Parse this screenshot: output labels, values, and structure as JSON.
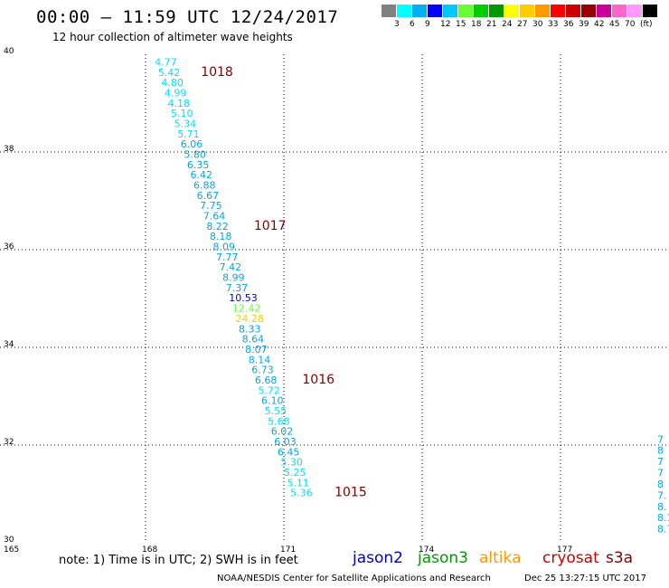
{
  "header": {
    "title": "00:00 – 11:59 UTC 12/24/2017",
    "subtitle": "12 hour collection of altimeter wave heights"
  },
  "legend": {
    "colors": [
      "#808080",
      "#00ffff",
      "#00b0f0",
      "#0000ff",
      "#00c8ff",
      "#66ff33",
      "#00cc00",
      "#009900",
      "#ffff00",
      "#ffcc00",
      "#ff9900",
      "#ff0000",
      "#cc0000",
      "#990000",
      "#cc0099",
      "#ff66cc",
      "#ff99ff",
      "#000000"
    ],
    "ticks": [
      "3",
      "6",
      "9",
      "12",
      "15",
      "18",
      "21",
      "24",
      "27",
      "30",
      "33",
      "36",
      "39",
      "42",
      "45",
      "70"
    ],
    "unit": "(ft)"
  },
  "axes": {
    "lon_ticks": [
      "165",
      "168",
      "171",
      "174",
      "177"
    ],
    "lat_ticks": [
      "40",
      "38",
      "36",
      "34",
      "32",
      "30"
    ]
  },
  "track_points": [
    {
      "lat": 39.77,
      "lon": 168.2,
      "v": "4.77",
      "c": "#00e0ff"
    },
    {
      "lat": 39.56,
      "lon": 168.27,
      "v": "5.42",
      "c": "#00e0ff"
    },
    {
      "lat": 39.35,
      "lon": 168.34,
      "v": "4.80",
      "c": "#00e0ff"
    },
    {
      "lat": 39.14,
      "lon": 168.41,
      "v": "4.99",
      "c": "#00e0ff"
    },
    {
      "lat": 38.93,
      "lon": 168.48,
      "v": "4.18",
      "c": "#00e0ff"
    },
    {
      "lat": 38.72,
      "lon": 168.55,
      "v": "5.10",
      "c": "#00e0ff"
    },
    {
      "lat": 38.51,
      "lon": 168.62,
      "v": "5.34",
      "c": "#00e0ff"
    },
    {
      "lat": 38.3,
      "lon": 168.69,
      "v": "5.71",
      "c": "#00e0ff"
    },
    {
      "lat": 38.09,
      "lon": 168.76,
      "v": "6.06",
      "c": "#00a8e8"
    },
    {
      "lat": 37.88,
      "lon": 168.83,
      "v": "5.80",
      "c": "#00a8e8"
    },
    {
      "lat": 37.67,
      "lon": 168.9,
      "v": "6.35",
      "c": "#00a8e8"
    },
    {
      "lat": 37.46,
      "lon": 168.97,
      "v": "6.42",
      "c": "#00a8e8"
    },
    {
      "lat": 37.25,
      "lon": 169.04,
      "v": "6.88",
      "c": "#00a8e8"
    },
    {
      "lat": 37.04,
      "lon": 169.11,
      "v": "6.67",
      "c": "#00a8e8"
    },
    {
      "lat": 36.83,
      "lon": 169.18,
      "v": "7.75",
      "c": "#00a8e8"
    },
    {
      "lat": 36.62,
      "lon": 169.25,
      "v": "7.64",
      "c": "#00a8e8"
    },
    {
      "lat": 36.41,
      "lon": 169.32,
      "v": "8.22",
      "c": "#00a8e8"
    },
    {
      "lat": 36.2,
      "lon": 169.39,
      "v": "8.18",
      "c": "#00a8e8"
    },
    {
      "lat": 35.99,
      "lon": 169.46,
      "v": "8.09",
      "c": "#00a8e8"
    },
    {
      "lat": 35.78,
      "lon": 169.53,
      "v": "7.77",
      "c": "#00a8e8"
    },
    {
      "lat": 35.57,
      "lon": 169.6,
      "v": "7.42",
      "c": "#00a8e8"
    },
    {
      "lat": 35.36,
      "lon": 169.67,
      "v": "8.99",
      "c": "#00a8e8"
    },
    {
      "lat": 35.15,
      "lon": 169.74,
      "v": "7.37",
      "c": "#00a8e8"
    },
    {
      "lat": 34.94,
      "lon": 169.81,
      "v": "10.53",
      "c": "#0000c8"
    },
    {
      "lat": 34.73,
      "lon": 169.88,
      "v": "12.42",
      "c": "#66ff33"
    },
    {
      "lat": 34.52,
      "lon": 169.95,
      "v": "24.28",
      "c": "#ffcc00"
    },
    {
      "lat": 34.31,
      "lon": 170.02,
      "v": "8.33",
      "c": "#00a8e8"
    },
    {
      "lat": 34.1,
      "lon": 170.09,
      "v": "8.64",
      "c": "#00a8e8"
    },
    {
      "lat": 33.89,
      "lon": 170.16,
      "v": "8.07",
      "c": "#00a8e8"
    },
    {
      "lat": 33.68,
      "lon": 170.23,
      "v": "8.14",
      "c": "#00a8e8"
    },
    {
      "lat": 33.47,
      "lon": 170.3,
      "v": "6.73",
      "c": "#00a8e8"
    },
    {
      "lat": 33.26,
      "lon": 170.37,
      "v": "6.68",
      "c": "#00a8e8"
    },
    {
      "lat": 33.05,
      "lon": 170.44,
      "v": "5.72",
      "c": "#00e0ff"
    },
    {
      "lat": 32.84,
      "lon": 170.51,
      "v": "6.10",
      "c": "#00a8e8"
    },
    {
      "lat": 32.63,
      "lon": 170.58,
      "v": "5.55",
      "c": "#00e0ff"
    },
    {
      "lat": 32.42,
      "lon": 170.65,
      "v": "5.68",
      "c": "#00e0ff"
    },
    {
      "lat": 32.21,
      "lon": 170.72,
      "v": "6.02",
      "c": "#00a8e8"
    },
    {
      "lat": 32.0,
      "lon": 170.79,
      "v": "6.03",
      "c": "#00a8e8"
    },
    {
      "lat": 31.79,
      "lon": 170.86,
      "v": "6.45",
      "c": "#00a8e8"
    },
    {
      "lat": 31.58,
      "lon": 170.93,
      "v": "5.30",
      "c": "#00e0ff"
    },
    {
      "lat": 31.37,
      "lon": 171.0,
      "v": "5.25",
      "c": "#00e0ff"
    },
    {
      "lat": 31.16,
      "lon": 171.07,
      "v": "5.11",
      "c": "#00e0ff"
    },
    {
      "lat": 30.95,
      "lon": 171.14,
      "v": "5.36",
      "c": "#00e0ff"
    }
  ],
  "right_edge_points": [
    {
      "lat": 32.05,
      "v": "7"
    },
    {
      "lat": 31.82,
      "v": "8"
    },
    {
      "lat": 31.59,
      "v": "7"
    },
    {
      "lat": 31.36,
      "v": "7"
    },
    {
      "lat": 31.13,
      "v": "8"
    },
    {
      "lat": 30.9,
      "v": "7."
    },
    {
      "lat": 30.67,
      "v": "8."
    },
    {
      "lat": 30.44,
      "v": "8.1"
    },
    {
      "lat": 30.21,
      "v": "8.7"
    }
  ],
  "pressure_labels": [
    {
      "lat": 39.56,
      "lon": 169.2,
      "v": "1018"
    },
    {
      "lat": 36.41,
      "lon": 170.35,
      "v": "1017"
    },
    {
      "lat": 33.26,
      "lon": 171.4,
      "v": "1016"
    },
    {
      "lat": 30.95,
      "lon": 172.1,
      "v": "1015"
    }
  ],
  "footer": {
    "note": "note:  1) Time is in UTC;  2) SWH is in feet",
    "satellites": [
      {
        "name": "jason2",
        "color": "#0000cc"
      },
      {
        "name": "jason3",
        "color": "#009900"
      },
      {
        "name": "altika",
        "color": "#ff9900"
      },
      {
        "name": "cryosat",
        "color": "#cc0000"
      },
      {
        "name": "s3a",
        "color": "#800000"
      }
    ],
    "credit": "NOAA/NESDIS Center for Satellite Applications and Research",
    "timestamp": "Dec 25 13:27:15 UTC 2017"
  }
}
